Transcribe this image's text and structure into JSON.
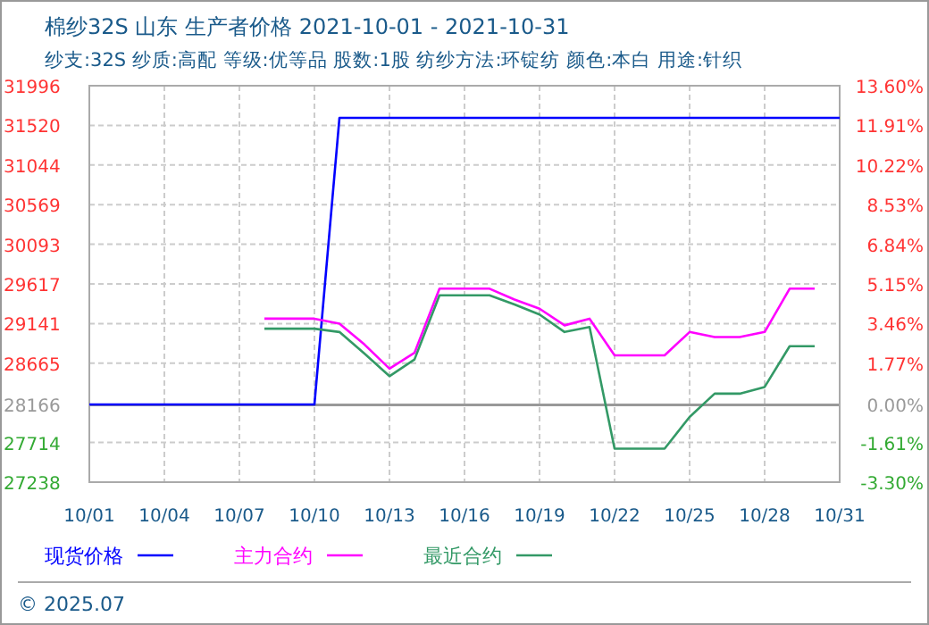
{
  "chart_data": {
    "type": "line",
    "title": "棉纱32S 山东 生产者价格 2021-10-01 - 2021-10-31",
    "subtitle": "纱支:32S 纱质:高配 等级:优等品 股数:1股 纺纱方法:环锭纺 颜色:本白 用途:针织",
    "annotations": [
      "© 2025.07"
    ],
    "x": [
      "2021-10-01",
      "2021-10-02",
      "2021-10-03",
      "2021-10-04",
      "2021-10-05",
      "2021-10-06",
      "2021-10-07",
      "2021-10-08",
      "2021-10-09",
      "2021-10-10",
      "2021-10-11",
      "2021-10-12",
      "2021-10-13",
      "2021-10-14",
      "2021-10-15",
      "2021-10-16",
      "2021-10-17",
      "2021-10-18",
      "2021-10-19",
      "2021-10-20",
      "2021-10-21",
      "2021-10-22",
      "2021-10-23",
      "2021-10-24",
      "2021-10-25",
      "2021-10-26",
      "2021-10-27",
      "2021-10-28",
      "2021-10-29",
      "2021-10-30",
      "2021-10-31"
    ],
    "series": [
      {
        "name": "现货价格",
        "color": "#0000ff",
        "values": [
          28170,
          28170,
          28170,
          28170,
          28170,
          28170,
          28170,
          28170,
          28170,
          28170,
          31610,
          31610,
          31610,
          31610,
          31610,
          31610,
          31610,
          31610,
          31610,
          31610,
          31610,
          31610,
          31610,
          31610,
          31610,
          31610,
          31610,
          31610,
          31610,
          31610,
          31610
        ]
      },
      {
        "name": "主力合约",
        "color": "#ff00ff",
        "values": [
          null,
          null,
          null,
          null,
          null,
          null,
          null,
          29200,
          29200,
          29200,
          29140,
          28890,
          28600,
          28790,
          29560,
          29560,
          29560,
          29430,
          29320,
          29120,
          29200,
          28760,
          28760,
          28760,
          29040,
          28980,
          28980,
          29040,
          29560,
          29560,
          null
        ]
      },
      {
        "name": "最近合约",
        "color": "#339966",
        "values": [
          null,
          null,
          null,
          null,
          null,
          null,
          null,
          29080,
          29080,
          29080,
          29040,
          28780,
          28510,
          28710,
          29480,
          29480,
          29480,
          29370,
          29250,
          29040,
          29100,
          27640,
          27640,
          27640,
          28020,
          28300,
          28300,
          28380,
          28870,
          28870,
          null
        ]
      }
    ],
    "xlim": [
      "2021-10-01",
      "2021-10-31"
    ],
    "xticks": [
      {
        "value": "2021-10-01",
        "label": "10/01"
      },
      {
        "value": "2021-10-04",
        "label": "10/04"
      },
      {
        "value": "2021-10-07",
        "label": "10/07"
      },
      {
        "value": "2021-10-10",
        "label": "10/10"
      },
      {
        "value": "2021-10-13",
        "label": "10/13"
      },
      {
        "value": "2021-10-16",
        "label": "10/16"
      },
      {
        "value": "2021-10-19",
        "label": "10/19"
      },
      {
        "value": "2021-10-22",
        "label": "10/22"
      },
      {
        "value": "2021-10-25",
        "label": "10/25"
      },
      {
        "value": "2021-10-28",
        "label": "10/28"
      },
      {
        "value": "2021-10-31",
        "label": "10/31"
      }
    ],
    "ylim": [
      27238,
      31996
    ],
    "yticks": [
      27238,
      27714,
      28166,
      28665,
      29141,
      29617,
      30093,
      30569,
      31044,
      31520,
      31996
    ],
    "y2lim": [
      -3.3,
      13.6
    ],
    "y2ticks": [
      {
        "value": -3.3,
        "label": "-3.30%"
      },
      {
        "value": -1.61,
        "label": "-1.61%"
      },
      {
        "value": 0,
        "label": "0.00%"
      },
      {
        "value": 1.77,
        "label": "1.77%"
      },
      {
        "value": 3.46,
        "label": "3.46%"
      },
      {
        "value": 5.15,
        "label": "5.15%"
      },
      {
        "value": 6.84,
        "label": "6.84%"
      },
      {
        "value": 8.53,
        "label": "8.53%"
      },
      {
        "value": 10.22,
        "label": "10.22%"
      },
      {
        "value": 11.91,
        "label": "11.91%"
      },
      {
        "value": 13.6,
        "label": "13.60%"
      }
    ],
    "ref_lines": [
      {
        "axis": "y",
        "value": 28166,
        "color": "#999999"
      }
    ],
    "grid": true,
    "legend": "bottom",
    "marker": "none",
    "line_style": "solid"
  }
}
